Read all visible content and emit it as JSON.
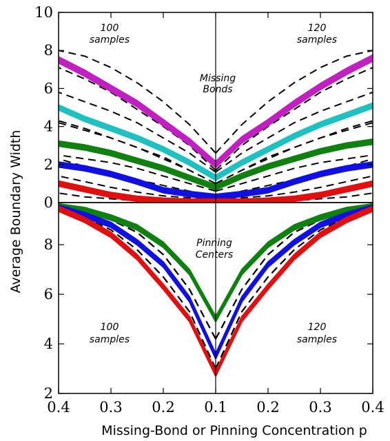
{
  "chart_data": {
    "type": "line",
    "xlabel": "Missing-Bond or Pinning Concentration p",
    "ylabel": "Average Boundary Width",
    "x_tick_labels": [
      "0.4",
      "0.3",
      "0.2",
      "0.1",
      "0.2",
      "0.3",
      "0.4"
    ],
    "x_scale": "mirrored about p = 0.1",
    "panels": [
      {
        "name": "top",
        "ylim": [
          0,
          10
        ],
        "yticks": [
          "0",
          "2",
          "4",
          "6",
          "8",
          "10"
        ],
        "annotations": {
          "center": [
            "Missing",
            "Bonds"
          ],
          "left": [
            "100",
            "samples"
          ],
          "right": [
            "120",
            "samples"
          ]
        },
        "p_values": [
          0.1,
          0.15,
          0.2,
          0.25,
          0.3,
          0.35,
          0.4
        ],
        "families": [
          {
            "color": "#c020c0",
            "left": [
              2.0,
              3.2,
              4.2,
              5.2,
              6.0,
              6.8,
              7.5
            ],
            "right": [
              2.0,
              3.3,
              4.2,
              5.2,
              6.1,
              6.9,
              7.6
            ],
            "dashed_upper": [
              2.6,
              4.1,
              5.3,
              6.3,
              7.1,
              7.7,
              8.0
            ],
            "dashed_lower": [
              1.7,
              3.0,
              4.0,
              4.9,
              5.8,
              6.5,
              7.1
            ]
          },
          {
            "color": "#20c0c0",
            "left": [
              1.3,
              2.1,
              2.8,
              3.4,
              3.9,
              4.4,
              5.0
            ],
            "right": [
              1.3,
              2.1,
              2.8,
              3.5,
              4.1,
              4.6,
              5.1
            ],
            "dashed_upper": [
              1.6,
              2.6,
              3.4,
              4.2,
              4.8,
              5.3,
              5.8
            ],
            "dashed_lower": [
              1.0,
              1.7,
              2.4,
              2.9,
              3.4,
              3.9,
              4.3
            ]
          },
          {
            "color": "#108010",
            "left": [
              0.8,
              1.3,
              1.8,
              2.2,
              2.6,
              2.9,
              3.1
            ],
            "right": [
              0.8,
              1.4,
              1.9,
              2.3,
              2.7,
              3.0,
              3.2
            ],
            "dashed_upper": [
              1.0,
              1.7,
              2.3,
              2.9,
              3.4,
              3.8,
              4.2
            ],
            "dashed_lower": [
              0.6,
              1.0,
              1.4,
              1.8,
              2.1,
              2.3,
              2.5
            ]
          },
          {
            "color": "#1010e0",
            "left": [
              0.3,
              0.45,
              0.65,
              1.1,
              1.5,
              1.8,
              2.0
            ],
            "right": [
              0.3,
              0.45,
              0.65,
              1.1,
              1.5,
              1.8,
              2.0
            ],
            "dashed_upper": [
              0.35,
              0.6,
              0.9,
              1.2,
              1.6,
              1.9,
              2.3
            ],
            "dashed_lower": [
              0.2,
              0.25,
              0.35,
              0.55,
              0.8,
              1.1,
              1.4
            ]
          },
          {
            "color": "#e01010",
            "left": [
              0.05,
              0.05,
              0.1,
              0.2,
              0.4,
              0.7,
              1.0
            ],
            "right": [
              0.05,
              0.05,
              0.1,
              0.2,
              0.4,
              0.7,
              1.0
            ],
            "dashed_upper": [
              0.1,
              0.1,
              0.2,
              0.3,
              0.5,
              0.7,
              0.9
            ],
            "dashed_lower": [
              0.0,
              0.0,
              0.05,
              0.1,
              0.2,
              0.3,
              0.5
            ]
          }
        ]
      },
      {
        "name": "bottom",
        "ylim": [
          2,
          9.7
        ],
        "yticks": [
          "2",
          "4",
          "6",
          "8"
        ],
        "annotations": {
          "center": [
            "Pinning",
            "Centers"
          ],
          "left": [
            "100",
            "samples"
          ],
          "right": [
            "120",
            "samples"
          ]
        },
        "p_values": [
          0.1,
          0.15,
          0.2,
          0.25,
          0.3,
          0.35,
          0.4
        ],
        "families": [
          {
            "color": "#108010",
            "left": [
              5.0,
              6.9,
              8.0,
              8.7,
              9.1,
              9.4,
              9.55
            ],
            "right": [
              5.0,
              6.9,
              8.0,
              8.7,
              9.1,
              9.4,
              9.55
            ],
            "dashed_upper": [
              4.2,
              6.2,
              7.6,
              8.5,
              9.0,
              9.3,
              9.5
            ],
            "dashed_lower": [
              3.0,
              5.3,
              6.7,
              7.8,
              8.6,
              9.1,
              9.5
            ]
          },
          {
            "color": "#1010e0",
            "left": [
              3.5,
              5.8,
              7.2,
              8.1,
              8.8,
              9.2,
              9.5
            ],
            "right": [
              3.5,
              5.8,
              7.2,
              8.1,
              8.8,
              9.2,
              9.5
            ],
            "dashed_upper": [
              4.2,
              6.2,
              7.6,
              8.5,
              9.0,
              9.3,
              9.5
            ],
            "dashed_lower": [
              3.0,
              5.3,
              6.7,
              7.8,
              8.6,
              9.1,
              9.5
            ]
          },
          {
            "color": "#e01010",
            "left": [
              2.8,
              5.0,
              6.3,
              7.5,
              8.4,
              9.0,
              9.45
            ],
            "right": [
              2.8,
              5.0,
              6.3,
              7.5,
              8.4,
              9.0,
              9.45
            ],
            "dashed_upper": [
              4.2,
              6.2,
              7.6,
              8.5,
              9.0,
              9.3,
              9.5
            ],
            "dashed_lower": [
              3.0,
              5.3,
              6.7,
              7.8,
              8.6,
              9.1,
              9.5
            ]
          }
        ]
      }
    ]
  }
}
